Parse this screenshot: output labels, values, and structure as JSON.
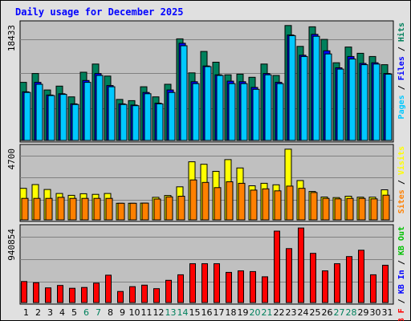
{
  "title": "Daily usage for December 2025",
  "colors": {
    "hits": "#00805c",
    "files": "#0000ff",
    "pages": "#00c8ff",
    "visits": "#ffff00",
    "sites": "#ff8000",
    "kbin": "#0000ff",
    "kbout": "#00c000",
    "kbf": "#ff0000",
    "weekend_day_label": "#00805c",
    "weekday_label": "#000000"
  },
  "chart_data": [
    {
      "type": "bar",
      "panel": "hits-files-pages",
      "ymax_label": "18433",
      "ylim": [
        0,
        18433
      ],
      "categories": [
        "1",
        "2",
        "3",
        "4",
        "5",
        "6",
        "7",
        "8",
        "9",
        "10",
        "11",
        "12",
        "13",
        "14",
        "15",
        "16",
        "17",
        "18",
        "19",
        "20",
        "21",
        "22",
        "23",
        "24",
        "25",
        "26",
        "27",
        "28",
        "29",
        "30",
        "31"
      ],
      "weekend_days": [
        "6",
        "7",
        "13",
        "14",
        "20",
        "21",
        "27",
        "28"
      ],
      "legend": [
        "Pages",
        "Files",
        "Hits"
      ],
      "series": [
        {
          "name": "Hits",
          "values": [
            9200,
            10600,
            8000,
            8600,
            6900,
            10800,
            12100,
            10200,
            6500,
            6300,
            8500,
            6900,
            8900,
            16100,
            10700,
            14100,
            12400,
            10400,
            10500,
            10000,
            12100,
            10300,
            18200,
            14900,
            18000,
            16000,
            12300,
            14800,
            13800,
            13300,
            12000
          ]
        },
        {
          "name": "Files",
          "values": [
            7700,
            9200,
            7200,
            7400,
            5800,
            9500,
            10600,
            8700,
            5800,
            5600,
            7600,
            5900,
            8000,
            15400,
            9300,
            11800,
            10400,
            9400,
            9300,
            8400,
            10600,
            9200,
            16700,
            13500,
            16800,
            14200,
            11500,
            13300,
            12200,
            12300,
            10600
          ]
        },
        {
          "name": "Pages",
          "values": [
            7600,
            8900,
            7100,
            7300,
            5700,
            9200,
            10300,
            8500,
            5700,
            5500,
            7400,
            5800,
            7600,
            15000,
            9000,
            11700,
            10300,
            9000,
            9000,
            8100,
            10400,
            9000,
            16600,
            13300,
            16500,
            13700,
            11300,
            12900,
            12000,
            12100,
            10500
          ]
        }
      ]
    },
    {
      "type": "bar",
      "panel": "visits-sites",
      "ymax_label": "4700",
      "ylim": [
        0,
        4700
      ],
      "categories": [
        "1",
        "2",
        "3",
        "4",
        "5",
        "6",
        "7",
        "8",
        "9",
        "10",
        "11",
        "12",
        "13",
        "14",
        "15",
        "16",
        "17",
        "18",
        "19",
        "20",
        "21",
        "22",
        "23",
        "24",
        "25",
        "26",
        "27",
        "28",
        "29",
        "30",
        "31"
      ],
      "legend": [
        "Sites",
        "Visits"
      ],
      "series": [
        {
          "name": "Visits",
          "values": [
            2050,
            2300,
            1980,
            1720,
            1600,
            1700,
            1660,
            1720,
            1080,
            1080,
            1090,
            1470,
            1590,
            2150,
            3780,
            3620,
            3160,
            3920,
            3380,
            2220,
            2380,
            2280,
            4600,
            2560,
            1850,
            1490,
            1450,
            1540,
            1480,
            1480,
            1960
          ]
        },
        {
          "name": "Sites",
          "values": [
            1400,
            1400,
            1400,
            1470,
            1400,
            1400,
            1400,
            1400,
            1080,
            1080,
            1090,
            1360,
            1500,
            1540,
            2600,
            2440,
            2100,
            2480,
            2380,
            1940,
            2020,
            1890,
            2200,
            2050,
            1780,
            1400,
            1370,
            1400,
            1400,
            1370,
            1610
          ]
        }
      ]
    },
    {
      "type": "bar",
      "panel": "kb",
      "ymax_label": "940854",
      "ylim": [
        0,
        940854
      ],
      "categories": [
        "1",
        "2",
        "3",
        "4",
        "5",
        "6",
        "7",
        "8",
        "9",
        "10",
        "11",
        "12",
        "13",
        "14",
        "15",
        "16",
        "17",
        "18",
        "19",
        "20",
        "21",
        "22",
        "23",
        "24",
        "25",
        "26",
        "27",
        "28",
        "29",
        "30",
        "31"
      ],
      "legend": [
        "KB F",
        "KB In",
        "KB Out"
      ],
      "series": [
        {
          "name": "KB F",
          "values": [
            265000,
            250000,
            185000,
            215000,
            180000,
            190000,
            245000,
            345000,
            140000,
            200000,
            220000,
            175000,
            280000,
            350000,
            490000,
            490000,
            490000,
            380000,
            400000,
            390000,
            325000,
            900000,
            680000,
            940000,
            620000,
            400000,
            490000,
            580000,
            660000,
            350000,
            470000
          ]
        }
      ]
    }
  ]
}
